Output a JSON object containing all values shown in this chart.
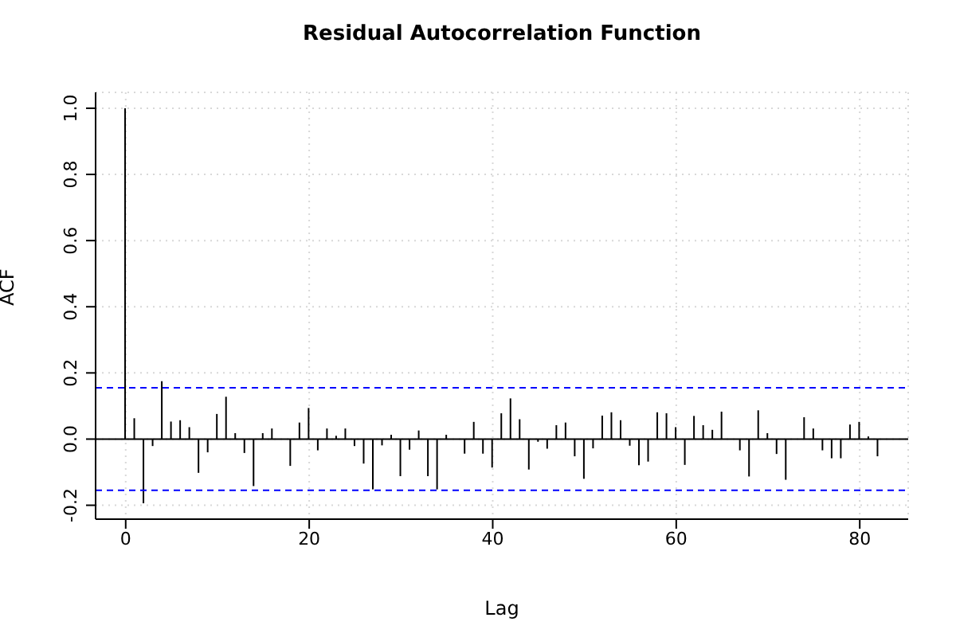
{
  "chart_data": {
    "type": "bar",
    "title": "Residual Autocorrelation Function",
    "xlabel": "Lag",
    "ylabel": "ACF",
    "x": [
      0,
      1,
      2,
      3,
      4,
      5,
      6,
      7,
      8,
      9,
      10,
      11,
      12,
      13,
      14,
      15,
      16,
      17,
      18,
      19,
      20,
      21,
      22,
      23,
      24,
      25,
      26,
      27,
      28,
      29,
      30,
      31,
      32,
      33,
      34,
      35,
      36,
      37,
      38,
      39,
      40,
      41,
      42,
      43,
      44,
      45,
      46,
      47,
      48,
      49,
      50,
      51,
      52,
      53,
      54,
      55,
      56,
      57,
      58,
      59,
      60,
      61,
      62,
      63,
      64,
      65,
      66,
      67,
      68,
      69,
      70,
      71,
      72,
      73,
      74,
      75,
      76,
      77,
      78,
      79,
      80,
      81,
      82
    ],
    "series": [
      {
        "color": "#000000",
        "values": [
          1.0,
          0.063,
          -0.194,
          -0.021,
          0.175,
          0.053,
          0.057,
          0.036,
          -0.102,
          -0.04,
          0.076,
          0.128,
          0.018,
          -0.042,
          -0.142,
          0.018,
          0.032,
          null,
          -0.081,
          0.05,
          0.094,
          -0.034,
          0.032,
          0.01,
          0.032,
          -0.021,
          -0.074,
          -0.152,
          -0.019,
          0.013,
          -0.112,
          -0.032,
          0.026,
          -0.112,
          -0.152,
          0.013,
          null,
          -0.044,
          0.052,
          -0.044,
          -0.086,
          0.078,
          0.123,
          0.06,
          -0.092,
          -0.008,
          -0.029,
          0.042,
          0.05,
          -0.052,
          -0.12,
          -0.028,
          0.071,
          0.081,
          0.057,
          -0.02,
          -0.079,
          -0.068,
          0.081,
          0.078,
          0.036,
          -0.078,
          0.07,
          0.042,
          0.028,
          0.083,
          null,
          -0.034,
          -0.113,
          0.087,
          0.018,
          -0.045,
          -0.123,
          null,
          0.066,
          0.032,
          -0.034,
          -0.058,
          -0.058,
          0.044,
          0.052,
          0.008,
          -0.052
        ]
      }
    ],
    "xlim": [
      -3.28,
      85.28
    ],
    "xticks": [
      0,
      20,
      40,
      60,
      80
    ],
    "ylim": [
      -0.242,
      1.048
    ],
    "yticks": [
      {
        "value": -0.2,
        "label": "-0.2"
      },
      {
        "value": 0,
        "label": "0.0"
      },
      {
        "value": 0.2,
        "label": "0.2"
      },
      {
        "value": 0.4,
        "label": "0.4"
      },
      {
        "value": 0.6,
        "label": "0.6"
      },
      {
        "value": 0.8,
        "label": "0.8"
      },
      {
        "value": 1,
        "label": "1.0"
      }
    ],
    "grid": true,
    "ref_lines": [
      {
        "axis": "y",
        "value": 0.155,
        "color": "#0000ff",
        "line_style": "dashed"
      },
      {
        "axis": "y",
        "value": -0.155,
        "color": "#0000ff",
        "line_style": "dashed"
      },
      {
        "axis": "y",
        "value": 0,
        "color": "#000000",
        "line_style": "solid"
      }
    ]
  }
}
